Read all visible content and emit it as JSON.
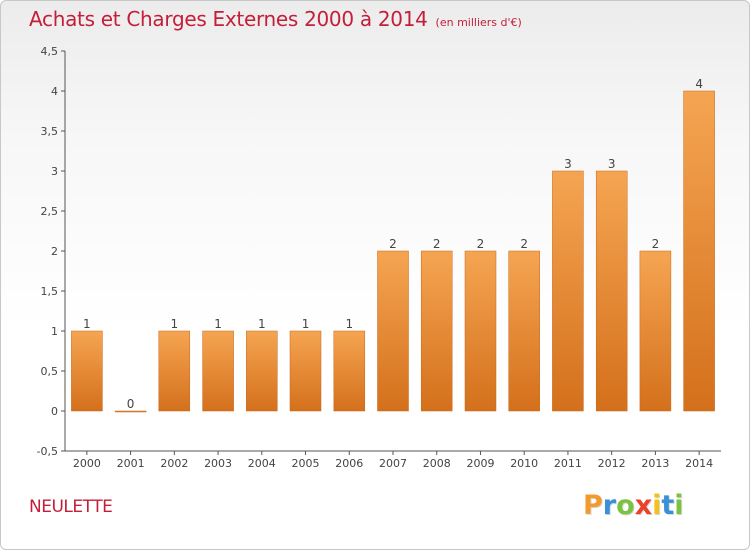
{
  "header": {
    "title": "Achats et Charges Externes 2000 à 2014",
    "unit": "(en milliers d'€)"
  },
  "footer": {
    "commune": "NEULETTE",
    "logo_letters": [
      {
        "char": "P",
        "color": "#f29a2e"
      },
      {
        "char": "r",
        "color": "#3a8fd6"
      },
      {
        "char": "o",
        "color": "#7cc242"
      },
      {
        "char": "x",
        "color": "#e8412c"
      },
      {
        "char": "i",
        "color": "#f2c21b"
      },
      {
        "char": "t",
        "color": "#3a8fd6"
      },
      {
        "char": "i",
        "color": "#7cc242"
      }
    ]
  },
  "chart_data": {
    "type": "bar",
    "title": "Achats et Charges Externes 2000 à 2014",
    "subtitle": "(en milliers d'€)",
    "xlabel": "",
    "ylabel": "",
    "categories": [
      "2000",
      "2001",
      "2002",
      "2003",
      "2004",
      "2005",
      "2006",
      "2007",
      "2008",
      "2009",
      "2010",
      "2011",
      "2012",
      "2013",
      "2014"
    ],
    "values": [
      1,
      0,
      1,
      1,
      1,
      1,
      1,
      2,
      2,
      2,
      2,
      3,
      3,
      2,
      4
    ],
    "data_labels": [
      "1",
      "0",
      "1",
      "1",
      "1",
      "1",
      "1",
      "2",
      "2",
      "2",
      "2",
      "3",
      "3",
      "2",
      "4"
    ],
    "ylim": [
      -0.5,
      4.5
    ],
    "yticks": [
      -0.5,
      0,
      0.5,
      1,
      1.5,
      2,
      2.5,
      3,
      3.5,
      4,
      4.5
    ],
    "ytick_labels": [
      "-0,5",
      "0",
      "0,5",
      "1",
      "1,5",
      "2",
      "2,5",
      "3",
      "3,5",
      "4",
      "4,5"
    ],
    "grid": false,
    "bar_color_top": "#f5a552",
    "bar_color_bottom": "#d4701c",
    "axis_color": "#555555"
  }
}
